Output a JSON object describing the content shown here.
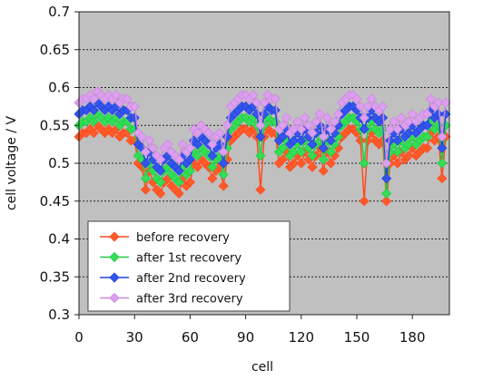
{
  "chart_data": {
    "type": "line",
    "xlabel": "cell",
    "ylabel": "cell voltage / V",
    "xlim": [
      0,
      200
    ],
    "ylim": [
      0.3,
      0.7
    ],
    "x_ticks": [
      "0",
      "30",
      "60",
      "90",
      "120",
      "150",
      "180"
    ],
    "y_ticks": [
      "0.3",
      "0.35",
      "0.4",
      "0.45",
      "0.5",
      "0.55",
      "0.6",
      "0.65",
      "0.7"
    ],
    "grid": "horizontal dotted",
    "background": "#c0c0c0",
    "legend_placement": "bottom-left",
    "x": [
      0,
      2,
      4,
      6,
      8,
      10,
      12,
      14,
      16,
      18,
      20,
      22,
      24,
      26,
      28,
      30,
      32,
      34,
      36,
      38,
      40,
      42,
      44,
      46,
      48,
      50,
      52,
      54,
      56,
      58,
      60,
      62,
      64,
      66,
      68,
      70,
      72,
      74,
      76,
      78,
      80,
      82,
      84,
      86,
      88,
      90,
      92,
      94,
      96,
      98,
      100,
      102,
      104,
      106,
      108,
      110,
      112,
      114,
      116,
      118,
      120,
      122,
      124,
      126,
      128,
      130,
      132,
      134,
      136,
      138,
      140,
      142,
      144,
      146,
      148,
      150,
      152,
      154,
      156,
      158,
      160,
      162,
      164,
      166,
      168,
      170,
      172,
      174,
      176,
      178,
      180,
      182,
      184,
      186,
      188,
      190,
      192,
      194,
      196,
      198
    ],
    "series": [
      {
        "name": "before recovery",
        "color": "#ff4b1f",
        "marker_fill": "#ff5a2a",
        "values": [
          0.535,
          0.54,
          0.54,
          0.545,
          0.54,
          0.55,
          0.545,
          0.54,
          0.545,
          0.54,
          0.545,
          0.535,
          0.54,
          0.54,
          0.53,
          0.53,
          0.5,
          0.495,
          0.465,
          0.49,
          0.475,
          0.465,
          0.46,
          0.475,
          0.48,
          0.47,
          0.465,
          0.46,
          0.48,
          0.47,
          0.475,
          0.5,
          0.495,
          0.505,
          0.5,
          0.495,
          0.48,
          0.49,
          0.495,
          0.47,
          0.505,
          0.53,
          0.535,
          0.54,
          0.545,
          0.545,
          0.54,
          0.545,
          0.535,
          0.465,
          0.535,
          0.545,
          0.54,
          0.54,
          0.5,
          0.505,
          0.515,
          0.495,
          0.5,
          0.51,
          0.5,
          0.515,
          0.505,
          0.495,
          0.51,
          0.52,
          0.49,
          0.515,
          0.5,
          0.51,
          0.52,
          0.535,
          0.54,
          0.545,
          0.545,
          0.54,
          0.53,
          0.45,
          0.53,
          0.54,
          0.53,
          0.525,
          0.53,
          0.45,
          0.5,
          0.51,
          0.5,
          0.515,
          0.505,
          0.51,
          0.52,
          0.51,
          0.515,
          0.52,
          0.52,
          0.54,
          0.53,
          0.535,
          0.48,
          0.535
        ]
      },
      {
        "name": "after 1st recovery",
        "color": "#22cc44",
        "marker_fill": "#33dd55",
        "values": [
          0.55,
          0.555,
          0.555,
          0.56,
          0.555,
          0.565,
          0.56,
          0.555,
          0.56,
          0.555,
          0.56,
          0.55,
          0.555,
          0.555,
          0.545,
          0.545,
          0.51,
          0.505,
          0.48,
          0.5,
          0.49,
          0.48,
          0.475,
          0.49,
          0.495,
          0.485,
          0.48,
          0.475,
          0.495,
          0.485,
          0.49,
          0.515,
          0.51,
          0.52,
          0.515,
          0.51,
          0.495,
          0.505,
          0.51,
          0.485,
          0.52,
          0.545,
          0.55,
          0.555,
          0.56,
          0.56,
          0.555,
          0.56,
          0.55,
          0.51,
          0.55,
          0.56,
          0.555,
          0.555,
          0.515,
          0.52,
          0.53,
          0.51,
          0.515,
          0.525,
          0.515,
          0.53,
          0.52,
          0.51,
          0.525,
          0.535,
          0.505,
          0.53,
          0.515,
          0.525,
          0.535,
          0.55,
          0.555,
          0.56,
          0.56,
          0.555,
          0.545,
          0.5,
          0.545,
          0.555,
          0.545,
          0.54,
          0.545,
          0.46,
          0.515,
          0.525,
          0.515,
          0.53,
          0.52,
          0.525,
          0.535,
          0.525,
          0.53,
          0.535,
          0.535,
          0.555,
          0.545,
          0.55,
          0.5,
          0.55
        ]
      },
      {
        "name": "after 2nd recovery",
        "color": "#2244dd",
        "marker_fill": "#3355ee",
        "values": [
          0.565,
          0.57,
          0.57,
          0.575,
          0.57,
          0.58,
          0.575,
          0.57,
          0.575,
          0.57,
          0.575,
          0.565,
          0.57,
          0.57,
          0.56,
          0.56,
          0.525,
          0.52,
          0.5,
          0.515,
          0.505,
          0.495,
          0.49,
          0.505,
          0.51,
          0.5,
          0.495,
          0.49,
          0.51,
          0.5,
          0.505,
          0.53,
          0.525,
          0.535,
          0.53,
          0.525,
          0.51,
          0.52,
          0.525,
          0.5,
          0.535,
          0.56,
          0.565,
          0.57,
          0.575,
          0.575,
          0.57,
          0.575,
          0.565,
          0.535,
          0.565,
          0.575,
          0.57,
          0.57,
          0.53,
          0.535,
          0.545,
          0.525,
          0.53,
          0.54,
          0.53,
          0.545,
          0.535,
          0.525,
          0.54,
          0.55,
          0.52,
          0.545,
          0.53,
          0.54,
          0.55,
          0.565,
          0.57,
          0.575,
          0.575,
          0.57,
          0.56,
          0.545,
          0.56,
          0.57,
          0.56,
          0.555,
          0.56,
          0.48,
          0.53,
          0.54,
          0.53,
          0.545,
          0.535,
          0.54,
          0.55,
          0.54,
          0.545,
          0.55,
          0.55,
          0.57,
          0.56,
          0.565,
          0.52,
          0.565
        ]
      },
      {
        "name": "after 3rd recovery",
        "color": "#cc88dd",
        "marker_fill": "#dda0f0",
        "values": [
          0.58,
          0.585,
          0.585,
          0.59,
          0.585,
          0.595,
          0.59,
          0.585,
          0.59,
          0.585,
          0.59,
          0.58,
          0.585,
          0.585,
          0.575,
          0.575,
          0.54,
          0.535,
          0.515,
          0.53,
          0.52,
          0.51,
          0.505,
          0.52,
          0.525,
          0.515,
          0.51,
          0.505,
          0.525,
          0.515,
          0.52,
          0.545,
          0.54,
          0.55,
          0.545,
          0.54,
          0.525,
          0.535,
          0.54,
          0.515,
          0.55,
          0.575,
          0.58,
          0.585,
          0.59,
          0.59,
          0.585,
          0.59,
          0.58,
          0.55,
          0.58,
          0.59,
          0.585,
          0.585,
          0.545,
          0.55,
          0.56,
          0.54,
          0.545,
          0.555,
          0.545,
          0.56,
          0.55,
          0.54,
          0.555,
          0.565,
          0.535,
          0.56,
          0.545,
          0.555,
          0.565,
          0.58,
          0.585,
          0.59,
          0.59,
          0.585,
          0.575,
          0.56,
          0.575,
          0.585,
          0.575,
          0.57,
          0.575,
          0.5,
          0.545,
          0.555,
          0.545,
          0.56,
          0.55,
          0.555,
          0.565,
          0.555,
          0.56,
          0.565,
          0.565,
          0.585,
          0.575,
          0.58,
          0.535,
          0.58
        ]
      }
    ]
  }
}
